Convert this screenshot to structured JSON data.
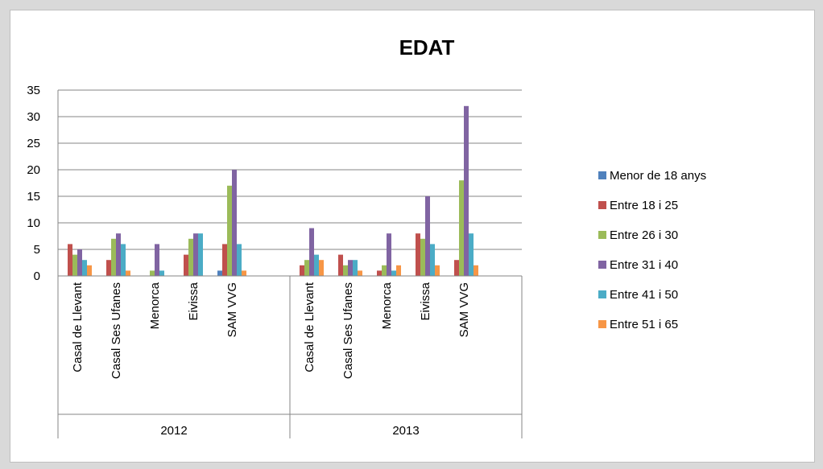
{
  "chart_data": {
    "type": "bar",
    "title": "EDAT",
    "ylim": [
      0,
      35
    ],
    "yticks": [
      0,
      5,
      10,
      15,
      20,
      25,
      30,
      35
    ],
    "grid": true,
    "legend_position": "right",
    "groups": [
      {
        "label": "2012",
        "categories": [
          "Casal de Llevant",
          "Casal Ses Ufanes",
          "Menorca",
          "Eivissa",
          "SAM VVG"
        ]
      },
      {
        "label": "2013",
        "categories": [
          "Casal de Llevant",
          "Casal Ses Ufanes",
          "Menorca",
          "Eivissa",
          "SAM VVG"
        ]
      }
    ],
    "series": [
      {
        "name": "Menor de 18 anys",
        "color": "#4f81bd",
        "values": [
          0,
          0,
          0,
          0,
          1,
          0,
          0,
          0,
          0,
          0
        ]
      },
      {
        "name": "Entre 18 i 25",
        "color": "#c0504d",
        "values": [
          6,
          3,
          0,
          4,
          6,
          2,
          4,
          1,
          8,
          3
        ]
      },
      {
        "name": "Entre 26 i 30",
        "color": "#9bbb59",
        "values": [
          4,
          7,
          1,
          7,
          17,
          3,
          2,
          2,
          7,
          18
        ]
      },
      {
        "name": "Entre 31 i 40",
        "color": "#8064a2",
        "values": [
          5,
          8,
          6,
          8,
          20,
          9,
          3,
          8,
          15,
          32
        ]
      },
      {
        "name": "Entre 41 i 50",
        "color": "#4bacc6",
        "values": [
          3,
          6,
          1,
          8,
          6,
          4,
          3,
          1,
          6,
          8
        ]
      },
      {
        "name": "Entre 51 i 65",
        "color": "#f79646",
        "values": [
          2,
          1,
          0,
          0,
          1,
          3,
          1,
          2,
          2,
          2
        ]
      }
    ]
  }
}
